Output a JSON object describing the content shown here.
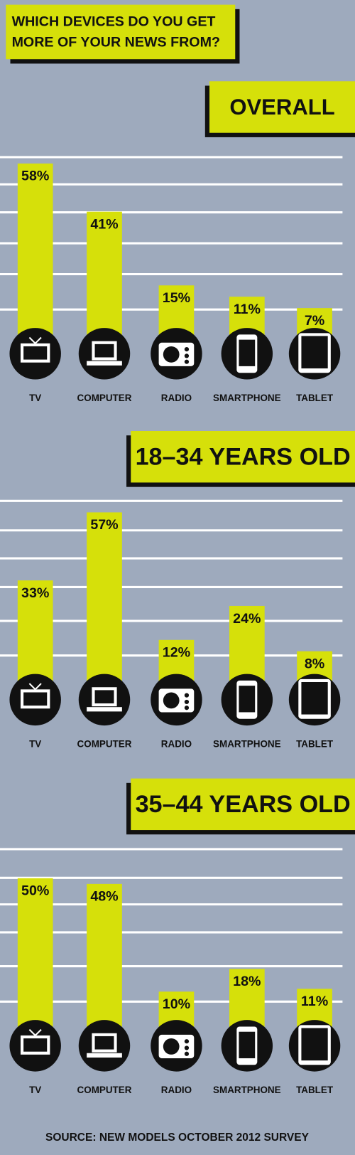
{
  "title": [
    "WHICH DEVICES DO YOU GET",
    "MORE OF YOUR NEWS FROM?"
  ],
  "chart_data": [
    {
      "type": "bar",
      "title": "OVERALL",
      "categories": [
        "TV",
        "COMPUTER",
        "RADIO",
        "SMARTPHONE",
        "TABLET"
      ],
      "values": [
        58,
        41,
        15,
        11,
        7
      ],
      "value_labels": [
        "58%",
        "41%",
        "15%",
        "11%",
        "7%"
      ],
      "color": "#d6e00a"
    },
    {
      "type": "bar",
      "title": "18–34 YEARS OLD",
      "categories": [
        "TV",
        "COMPUTER",
        "RADIO",
        "SMARTPHONE",
        "TABLET"
      ],
      "values": [
        33,
        57,
        12,
        24,
        8
      ],
      "value_labels": [
        "33%",
        "57%",
        "12%",
        "24%",
        "8%"
      ],
      "color": "#d6e00a"
    },
    {
      "type": "bar",
      "title": "35–44 YEARS OLD",
      "categories": [
        "TV",
        "COMPUTER",
        "RADIO",
        "SMARTPHONE",
        "TABLET"
      ],
      "values": [
        50,
        48,
        10,
        18,
        11
      ],
      "value_labels": [
        "50%",
        "48%",
        "10%",
        "18%",
        "11%"
      ],
      "color": "#d6e00a"
    }
  ],
  "source": "SOURCE: NEW MODELS OCTOBER 2012 SURVEY"
}
